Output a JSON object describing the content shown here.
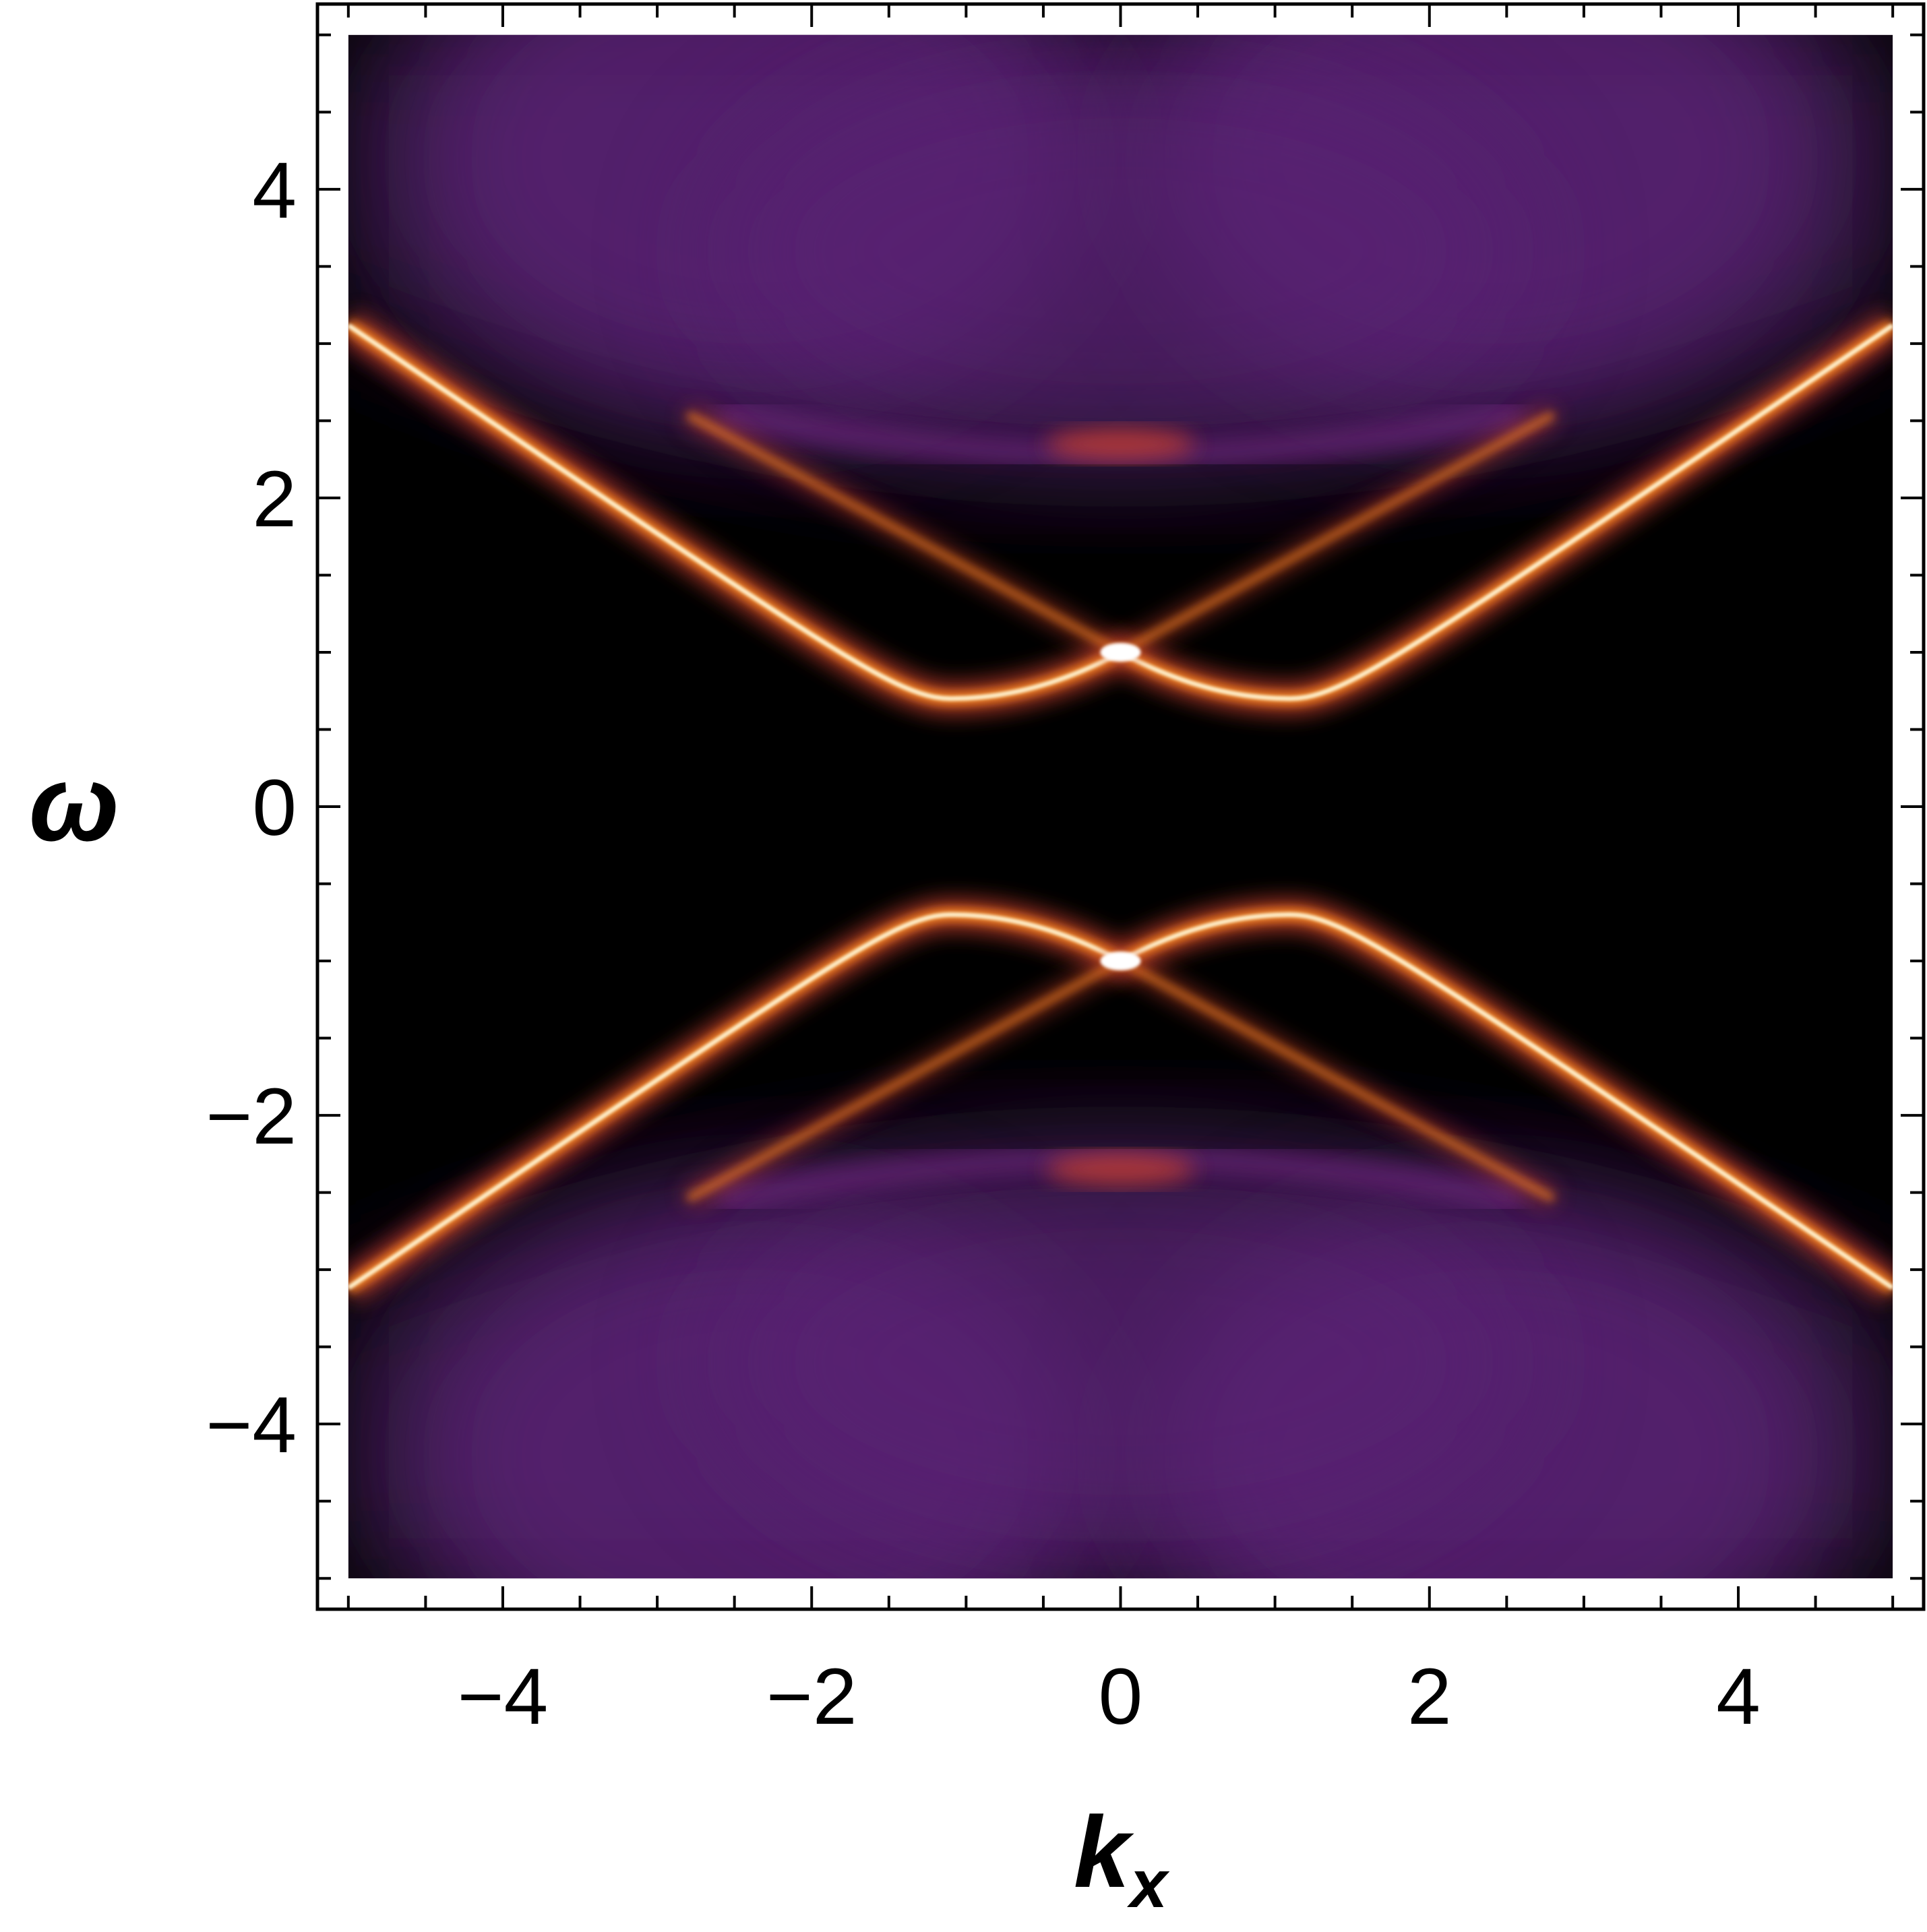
{
  "chart_data": {
    "type": "heatmap",
    "title": "",
    "xlabel": "k",
    "xlabel_subscript": "x",
    "ylabel": "ω",
    "xlim": [
      -5.2,
      5.2
    ],
    "ylim": [
      -5.2,
      5.2
    ],
    "x_ticks": [
      {
        "value": -4,
        "label": "−4"
      },
      {
        "value": -2,
        "label": "−2"
      },
      {
        "value": 0,
        "label": "0"
      },
      {
        "value": 2,
        "label": "2"
      },
      {
        "value": 4,
        "label": "4"
      }
    ],
    "y_ticks": [
      {
        "value": 4,
        "label": "4"
      },
      {
        "value": 2,
        "label": "2"
      },
      {
        "value": 0,
        "label": "0"
      },
      {
        "value": -2,
        "label": "−2"
      },
      {
        "value": -4,
        "label": "−4"
      }
    ],
    "minor_tick_step": 0.5,
    "data_extent": {
      "x": [
        -5,
        5
      ],
      "y": [
        -5,
        5
      ]
    },
    "colormap": [
      "#000000",
      "#2a1238",
      "#5a2175",
      "#7b2a8c",
      "#c8402f",
      "#f07f1a",
      "#fff3cf",
      "#ffffff"
    ],
    "bands": [
      {
        "name": "",
        "kind": "hyperbola",
        "sign": 1,
        "min_omega": 0.7,
        "at_k": 1.1,
        "curvature": 0.45
      },
      {
        "name": "",
        "kind": "hyperbola",
        "sign": -1,
        "min_omega": 0.7,
        "at_k": 1.1,
        "curvature": 0.45
      },
      {
        "name": "",
        "kind": "linear",
        "sign": 1,
        "omega0": 1.0,
        "slope": 0.55,
        "k_range": [
          -2.8,
          2.8
        ]
      },
      {
        "name": "",
        "kind": "linear",
        "sign": -1,
        "omega0": 1.0,
        "slope": 0.55,
        "k_range": [
          -2.8,
          2.8
        ]
      }
    ],
    "grid": false,
    "legend": "none"
  }
}
